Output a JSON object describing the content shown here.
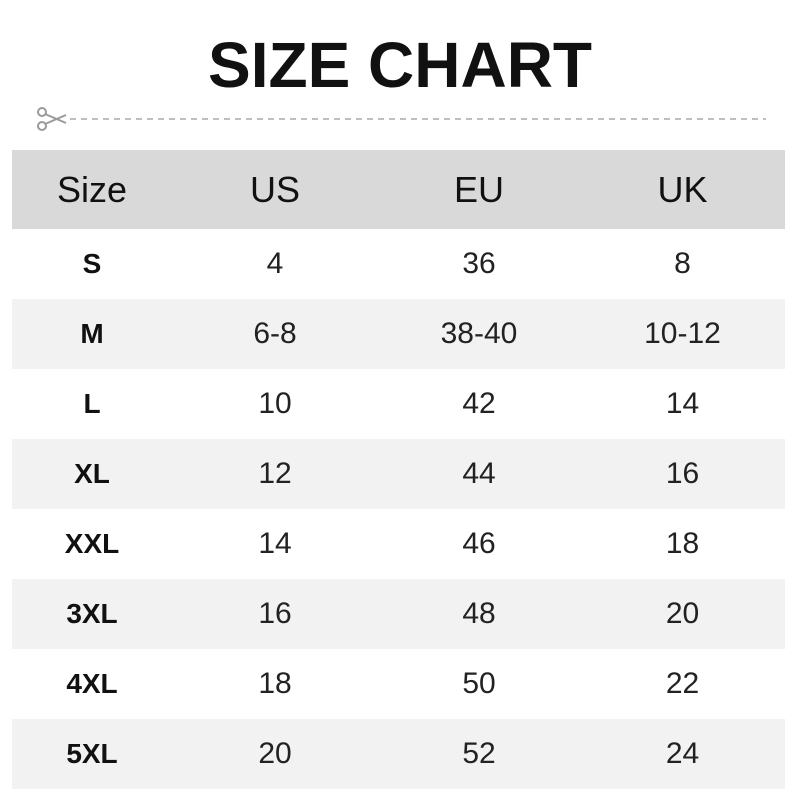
{
  "title": "SIZE CHART",
  "icons": {
    "cut": "scissors-icon"
  },
  "colors": {
    "header_bg": "#d9d9d9",
    "alt_row_bg": "#f2f2f2"
  },
  "headers": [
    "Size",
    "US",
    "EU",
    "UK"
  ],
  "rows": [
    [
      "S",
      "4",
      "36",
      "8"
    ],
    [
      "M",
      "6-8",
      "38-40",
      "10-12"
    ],
    [
      "L",
      "10",
      "42",
      "14"
    ],
    [
      "XL",
      "12",
      "44",
      "16"
    ],
    [
      "XXL",
      "14",
      "46",
      "18"
    ],
    [
      "3XL",
      "16",
      "48",
      "20"
    ],
    [
      "4XL",
      "18",
      "50",
      "22"
    ],
    [
      "5XL",
      "20",
      "52",
      "24"
    ]
  ]
}
